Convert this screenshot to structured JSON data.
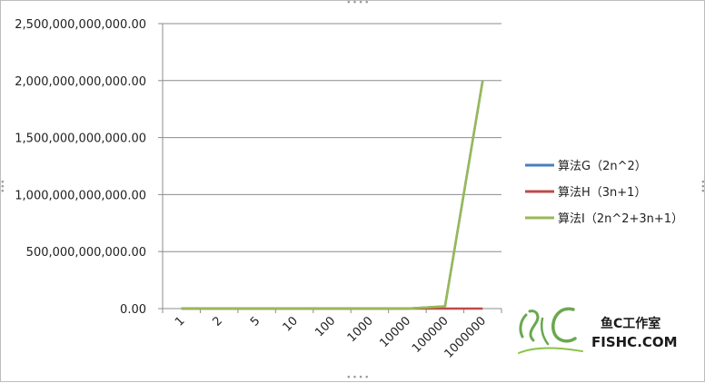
{
  "chart_data": {
    "type": "line",
    "categories": [
      "1",
      "2",
      "5",
      "10",
      "100",
      "1000",
      "10000",
      "100000",
      "1000000"
    ],
    "series": [
      {
        "name": "算法G（2n^2）",
        "color": "#4a7ebb",
        "values": [
          2,
          8,
          50,
          200,
          20000,
          2000000,
          200000000,
          20000000000,
          2000000000000
        ]
      },
      {
        "name": "算法H（3n+1）",
        "color": "#be4b48",
        "values": [
          4,
          7,
          16,
          31,
          301,
          3001,
          30001,
          300001,
          3000001
        ]
      },
      {
        "name": "算法I（2n^2+3n+1）",
        "color": "#98b954",
        "values": [
          6,
          15,
          66,
          231,
          20301,
          2003001,
          200030001,
          20000300001,
          2000003000001
        ]
      }
    ],
    "yticks": [
      "0.00",
      "500,000,000,000.00",
      "1,000,000,000,000.00",
      "1,500,000,000,000.00",
      "2,000,000,000,000.00",
      "2,500,000,000,000.00"
    ],
    "ylim": [
      0,
      2500000000000
    ],
    "grid": true,
    "legend_position": "right"
  },
  "watermark": {
    "brand": "鱼C工作室",
    "site": "FISHC.COM"
  }
}
